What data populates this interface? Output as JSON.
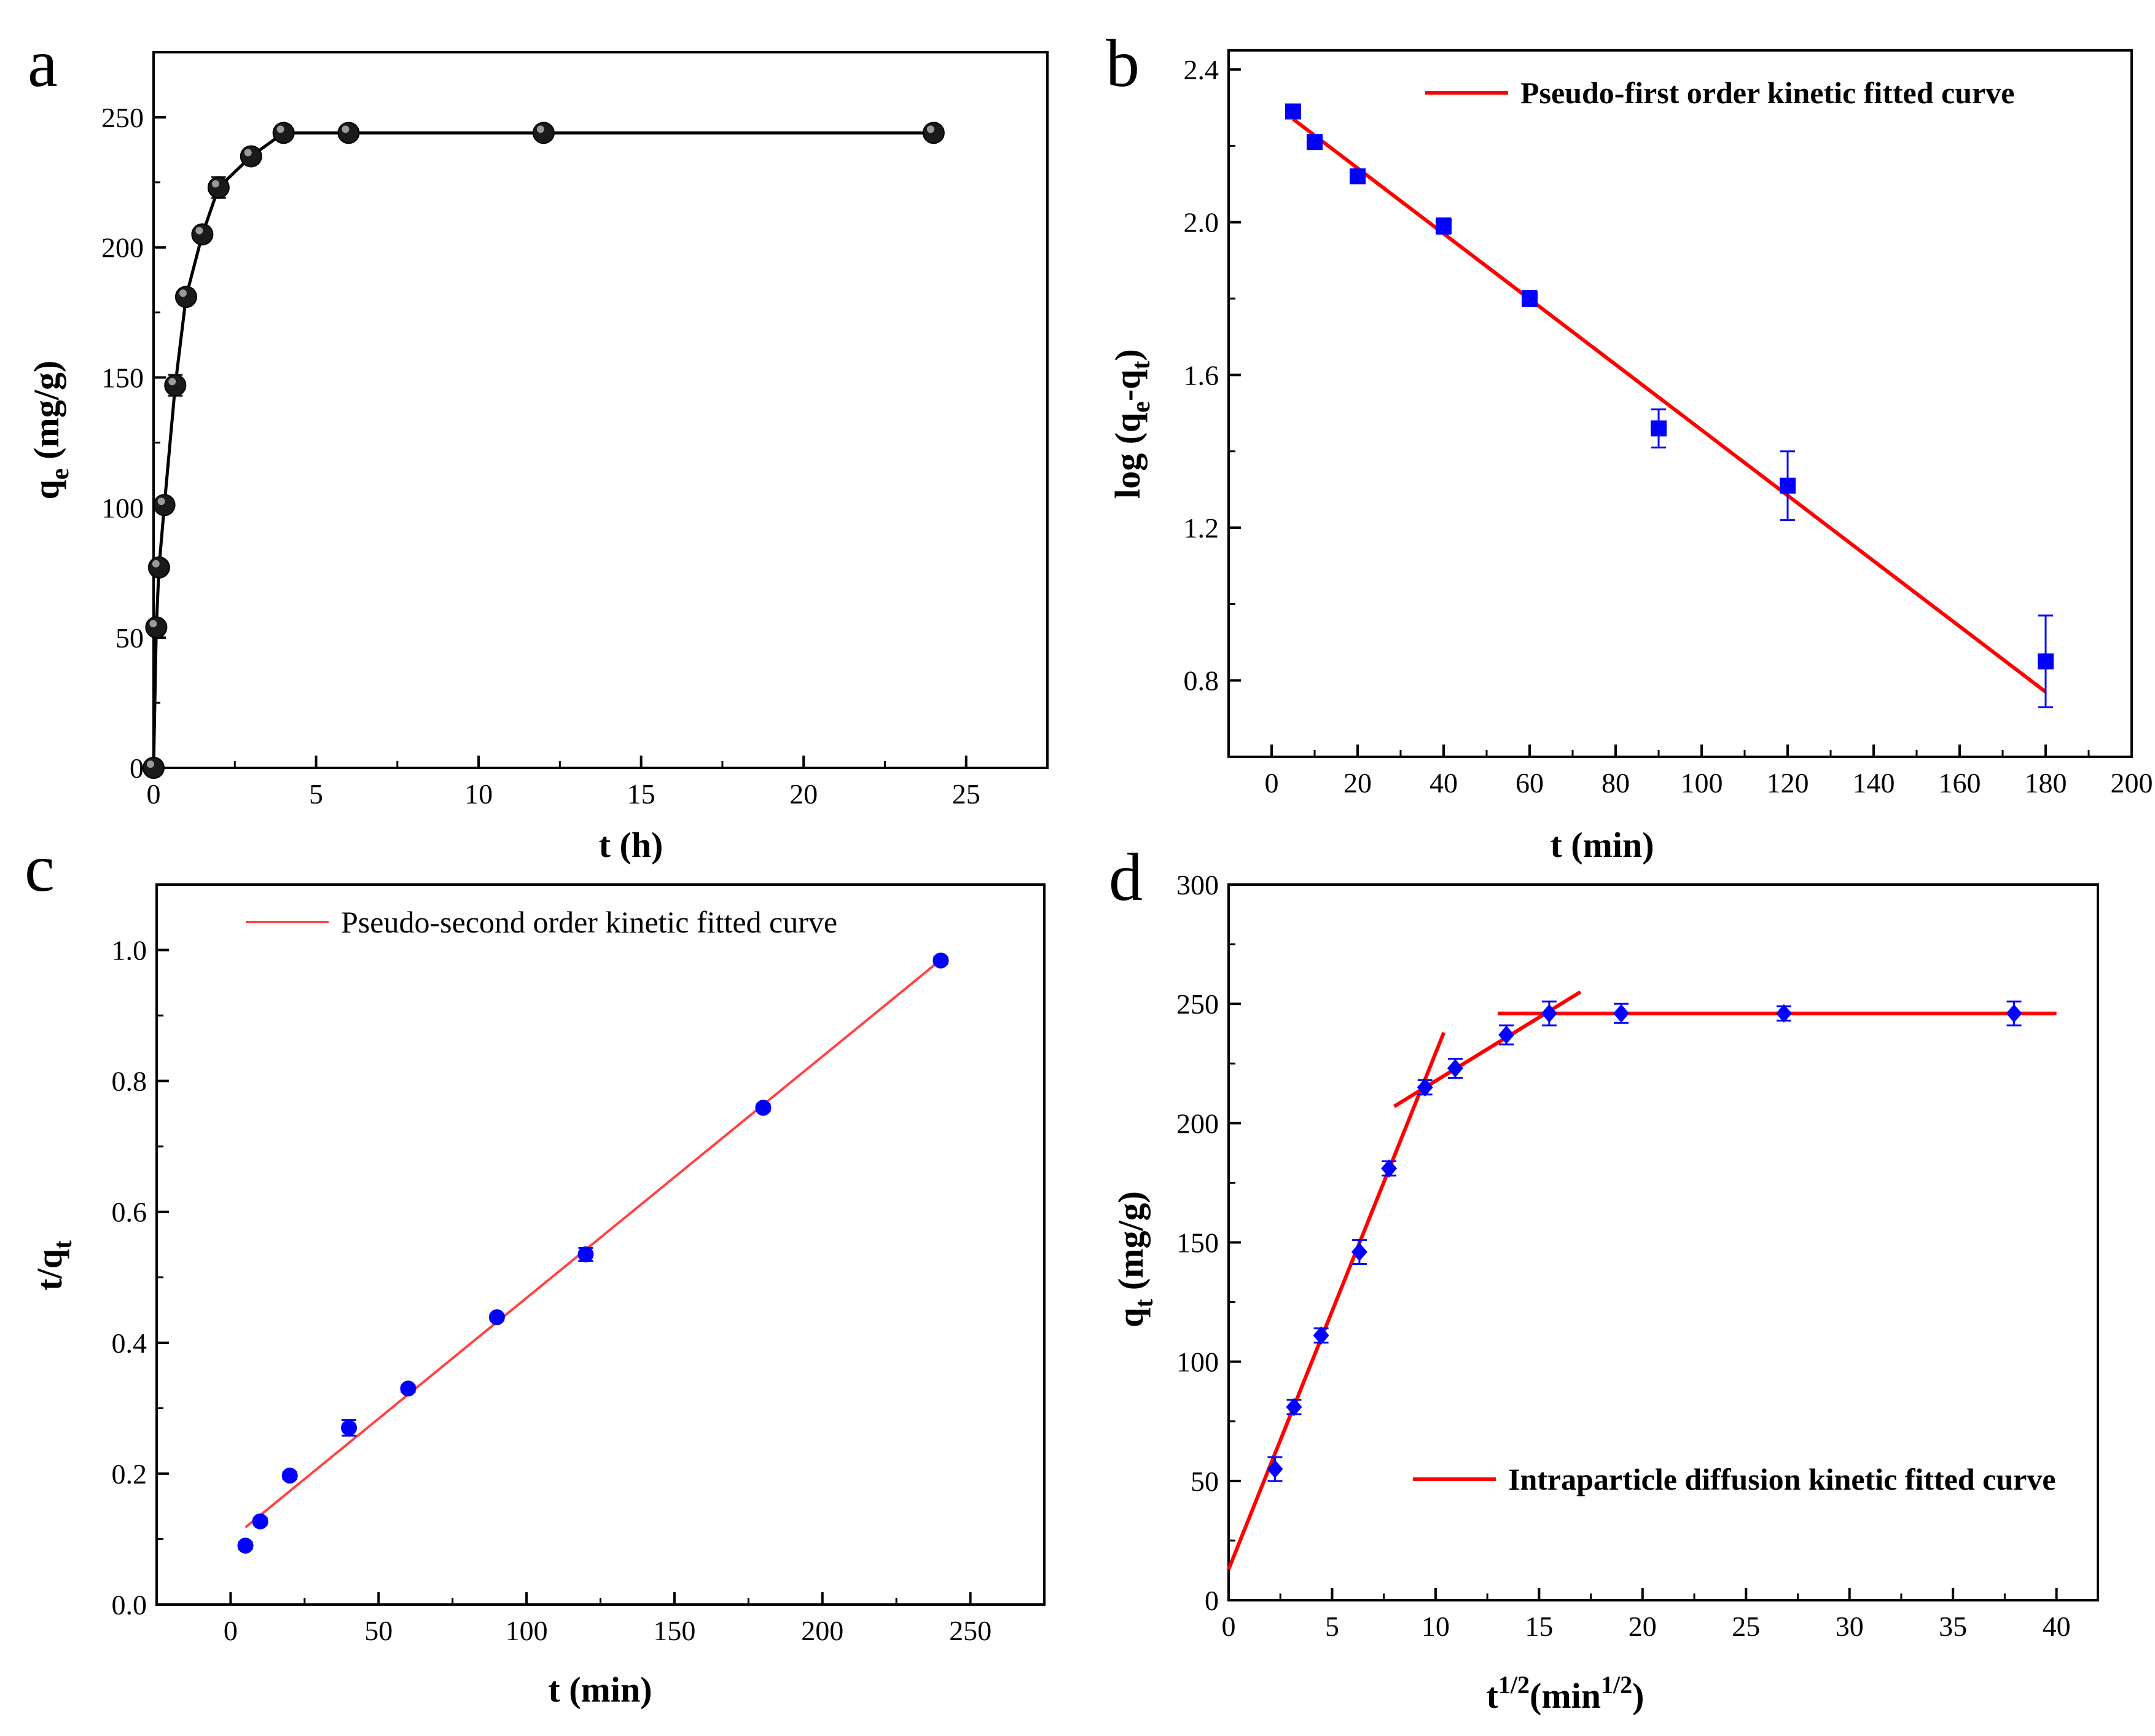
{
  "chart_data": [
    {
      "id": "a",
      "type": "line",
      "panel_label": "a",
      "title": "",
      "xlabel": "t (h)",
      "ylabel": {
        "main": "q",
        "sub": "e",
        "rest": " (mg/g)"
      },
      "xlim": [
        0,
        27.5
      ],
      "ylim": [
        0,
        275
      ],
      "xticks": [
        0,
        5,
        10,
        15,
        20,
        25
      ],
      "yticks": [
        0,
        50,
        100,
        150,
        200,
        250
      ],
      "marker": "sphere",
      "series": [
        {
          "name": "q_e",
          "x": [
            0,
            0.083,
            0.167,
            0.333,
            0.667,
            1,
            1.5,
            2,
            3,
            4,
            6,
            12,
            24
          ],
          "y": [
            0,
            54,
            77,
            101,
            147,
            181,
            205,
            223,
            235,
            244,
            244,
            244,
            244
          ],
          "err": [
            0,
            2,
            2,
            2,
            4,
            3,
            3,
            4,
            3,
            2,
            2,
            2,
            2
          ]
        }
      ],
      "colors": {
        "line": "#000000",
        "marker": "#222222"
      }
    },
    {
      "id": "b",
      "type": "scatter",
      "panel_label": "b",
      "title": "",
      "xlabel": "t (min)",
      "ylabel": {
        "main": "log (q",
        "sub1": "e",
        "mid": "-q",
        "sub2": "t",
        "rest": ")"
      },
      "xlim": [
        -10,
        200
      ],
      "ylim": [
        0.6,
        2.45
      ],
      "xticks": [
        0,
        20,
        40,
        60,
        80,
        100,
        120,
        140,
        160,
        180,
        200
      ],
      "yticks": [
        0.8,
        1.2,
        1.6,
        2.0,
        2.4
      ],
      "ytick_labels": [
        "0.8",
        "1.2",
        "1.6",
        "2.0",
        "2.4"
      ],
      "legend": "Pseudo-first order kinetic fitted curve",
      "legend_position": "top-right",
      "marker": "square",
      "series": [
        {
          "name": "data",
          "x": [
            5,
            10,
            20,
            40,
            60,
            90,
            120,
            180
          ],
          "y": [
            2.29,
            2.21,
            2.12,
            1.99,
            1.8,
            1.46,
            1.31,
            0.85
          ],
          "err": [
            0.01,
            0.01,
            0.01,
            0.02,
            0.02,
            0.05,
            0.09,
            0.12
          ]
        }
      ],
      "fit": {
        "x": [
          5,
          180
        ],
        "y": [
          2.27,
          0.77
        ]
      },
      "colors": {
        "fit": "#ff0000",
        "marker": "#0000ff"
      }
    },
    {
      "id": "c",
      "type": "scatter",
      "panel_label": "c",
      "title": "",
      "xlabel": "t (min)",
      "ylabel": {
        "main": "t/q",
        "sub": "t",
        "rest": ""
      },
      "xlim": [
        -25,
        275
      ],
      "ylim": [
        0,
        1.1
      ],
      "xticks": [
        0,
        50,
        100,
        150,
        200,
        250
      ],
      "yticks": [
        0.0,
        0.2,
        0.4,
        0.6,
        0.8,
        1.0
      ],
      "ytick_labels": [
        "0.0",
        "0.2",
        "0.4",
        "0.6",
        "0.8",
        "1.0"
      ],
      "legend": "Pseudo-second order kinetic fitted curve",
      "legend_position": "top-left",
      "marker": "circle",
      "series": [
        {
          "name": "data",
          "x": [
            5,
            10,
            20,
            40,
            60,
            90,
            120,
            180,
            240
          ],
          "y": [
            0.09,
            0.127,
            0.197,
            0.27,
            0.33,
            0.439,
            0.535,
            0.759,
            0.984
          ],
          "err": [
            0.005,
            0.005,
            0.005,
            0.012,
            0.005,
            0.005,
            0.01,
            0.005,
            0.005
          ]
        }
      ],
      "fit": {
        "x": [
          5,
          240
        ],
        "y": [
          0.118,
          0.985
        ]
      },
      "colors": {
        "fit": "#ff4444",
        "marker": "#0000ff"
      }
    },
    {
      "id": "d",
      "type": "scatter",
      "panel_label": "d",
      "title": "",
      "xlabel": {
        "main": "t",
        "sup": "1/2",
        "rest": "(min",
        "sup2": "1/2",
        "end": ")"
      },
      "ylabel": {
        "main": "q",
        "sub": "t",
        "rest": " (mg/g)"
      },
      "xlim": [
        0,
        42
      ],
      "ylim": [
        0,
        300
      ],
      "xticks": [
        0,
        5,
        10,
        15,
        20,
        25,
        30,
        35,
        40
      ],
      "yticks": [
        0,
        50,
        100,
        150,
        200,
        250,
        300
      ],
      "legend": "Intraparticle diffusion kinetic fitted curve",
      "legend_position": "bottom-right",
      "marker": "diamond",
      "series": [
        {
          "name": "data",
          "x": [
            2.24,
            3.16,
            4.47,
            6.32,
            7.75,
            9.49,
            10.95,
            13.42,
            15.49,
            18.97,
            26.83,
            37.95
          ],
          "y": [
            55,
            81,
            111,
            146,
            181,
            215,
            223,
            237,
            246,
            246,
            246,
            246
          ],
          "err": [
            5,
            3,
            3,
            5,
            3,
            3,
            4,
            4,
            5,
            4,
            3,
            5
          ]
        }
      ],
      "fits": [
        {
          "x": [
            0,
            10.4
          ],
          "y": [
            13,
            238
          ]
        },
        {
          "x": [
            8,
            17
          ],
          "y": [
            207,
            255
          ]
        },
        {
          "x": [
            13,
            40
          ],
          "y": [
            246,
            246
          ]
        }
      ],
      "colors": {
        "fit": "#ff0000",
        "marker": "#0000ff"
      }
    }
  ]
}
